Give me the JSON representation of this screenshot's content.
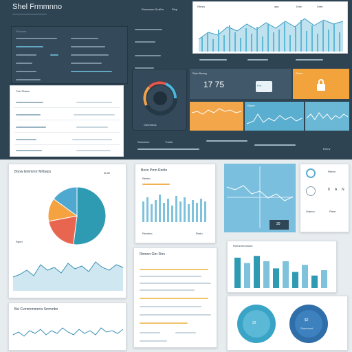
{
  "app": {
    "title": "Shel Frmmnno"
  },
  "top_header": {
    "links": [
      "Rummmm Srur",
      "Sm"
    ],
    "right_label": "Ptsp"
  },
  "left_panel": {
    "header_text": "Rrouoon",
    "rows": [
      "Bruni",
      "Cutte",
      "Trneem",
      "Tucom",
      "Petnoe",
      "Fonmm"
    ]
  },
  "top_chart": {
    "label": "Rtrnm",
    "right_labels": [
      "aan",
      "Erbn",
      "Srtte"
    ],
    "series_color": "#5fb8d6"
  },
  "left_list_card": {
    "header": "Cxtr Rtasm",
    "rows": [
      "Fmmrm",
      "Ceumm",
      "Pmtmrs",
      "Stommn",
      "Prtmenn"
    ]
  },
  "gauge_card": {
    "caption": "Ctrnmmus",
    "colors": [
      "#f0a24a",
      "#4cb6d8",
      "#e8564a"
    ]
  },
  "stat_cards": {
    "title": "Rpto Bsseg",
    "big_value": "17 75",
    "tags": [
      "Frrr",
      "Stono",
      "Rrrn"
    ],
    "blue_card_label": "Rpom",
    "orange_icon": "lock-icon"
  },
  "mid_strip": {
    "labels": [
      "Snmnerm",
      "Tmnm",
      "Rmnv"
    ]
  },
  "pie_card": {
    "title": "Bnow tetnmmrr Mhbeps",
    "value": "0L50",
    "legend": "Rpnrr",
    "slices": [
      {
        "label": "teal",
        "value": 52,
        "color": "#2f9bb3"
      },
      {
        "label": "coral",
        "value": 20,
        "color": "#e8664f"
      },
      {
        "label": "orange",
        "value": 13,
        "color": "#f4a340"
      },
      {
        "label": "blue",
        "value": 15,
        "color": "#4fa8cf"
      }
    ]
  },
  "bar_card": {
    "title": "Boxo Prrm Rerlte",
    "subtitle": "Rertsn",
    "footer": "Rrrmtno",
    "footer_right": "Rmtn"
  },
  "blue_panel": {
    "value": "30"
  },
  "right_icons": {
    "labels": [
      "Rtrmn",
      "Sntnoo",
      "Ptnm"
    ],
    "values": [
      "8",
      "A",
      "N"
    ]
  },
  "area_card": {
    "title": "",
    "labels": [
      "Ebe",
      "Wrntteeg",
      "Lonnee"
    ]
  },
  "text_card": {
    "title": "Rnmnn Gtrr Rrrs"
  },
  "bottom_line_card": {
    "title": "Bsi Cvrmmmmerrs Srrmmbn"
  },
  "bar_chart_card": {
    "title": "Rmmrmmnmsm",
    "bars": [
      34,
      28,
      36,
      30,
      22,
      30,
      18,
      26,
      14,
      20
    ]
  },
  "donut_card": {
    "left_value": "22",
    "right_value": "$2",
    "right_sub": "Stnmmeot"
  }
}
